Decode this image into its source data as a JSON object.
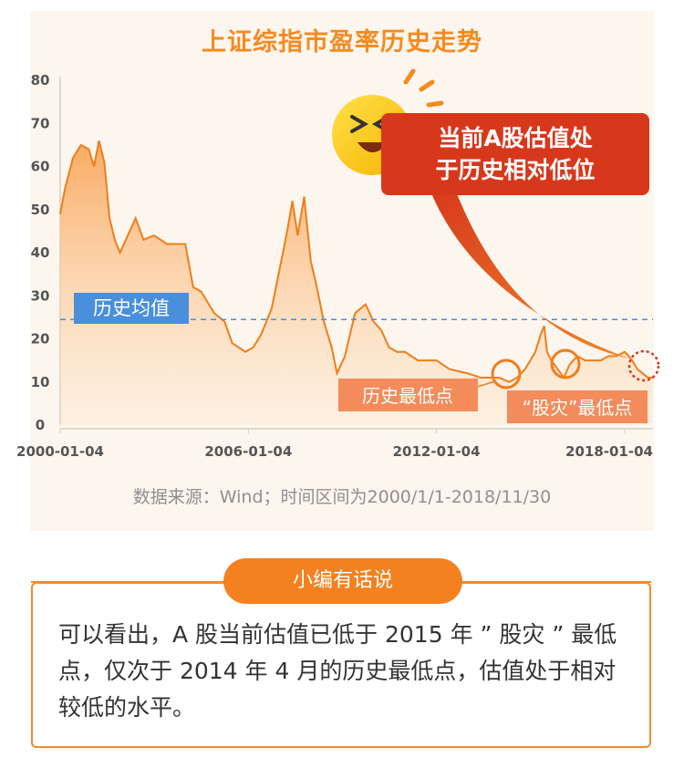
{
  "chart_data": {
    "type": "area",
    "title": "上证综指市盈率历史走势",
    "source": "数据来源：Wind；时间区间为2000/1/1-2018/11/30",
    "x_ticks": [
      "2000-01-04",
      "2006-01-04",
      "2012-01-04",
      "2018-01-04"
    ],
    "y_ticks": [
      "0",
      "10",
      "20",
      "30",
      "40",
      "50",
      "60",
      "70",
      "80"
    ],
    "ylim": [
      0,
      80
    ],
    "xlim": [
      "2000-01-04",
      "2018-11-30"
    ],
    "historical_mean": 24.5,
    "mean_label": "历史均值",
    "series": [
      {
        "x": [
          "2000-01-04",
          "2000-03-01",
          "2000-06-01",
          "2000-09-01",
          "2000-12-01",
          "2001-02-01",
          "2001-04-01",
          "2001-06-01",
          "2001-08-01",
          "2001-10-01",
          "2001-12-01",
          "2002-03-01",
          "2002-06-01",
          "2002-09-01",
          "2003-01-01",
          "2003-06-01",
          "2004-01-01",
          "2004-04-01",
          "2004-07-01",
          "2004-12-01",
          "2005-04-01",
          "2005-07-01",
          "2005-12-01",
          "2006-03-01",
          "2006-06-01",
          "2006-10-01",
          "2007-01-01",
          "2007-04-01",
          "2007-06-01",
          "2007-08-01",
          "2007-10-16",
          "2008-01-01",
          "2008-03-01",
          "2008-06-01",
          "2008-09-01",
          "2008-11-01",
          "2009-02-01",
          "2009-04-01",
          "2009-06-01",
          "2009-08-01",
          "2009-10-01",
          "2010-01-01",
          "2010-04-01",
          "2010-07-01",
          "2010-10-01",
          "2011-01-01",
          "2011-06-01",
          "2012-01-04",
          "2012-06-01",
          "2013-01-01",
          "2013-06-01",
          "2014-01-01",
          "2014-04-30",
          "2014-08-01",
          "2014-11-01",
          "2015-01-01",
          "2015-03-01",
          "2015-05-01",
          "2015-06-12",
          "2015-07-15",
          "2015-09-01",
          "2016-01-28",
          "2016-04-01",
          "2016-07-01",
          "2016-10-01",
          "2017-01-01",
          "2017-04-01",
          "2017-07-01",
          "2017-10-01",
          "2018-01-04",
          "2018-02-20",
          "2018-04-01",
          "2018-06-01",
          "2018-08-01",
          "2018-10-01",
          "2018-11-30"
        ],
        "values": [
          49,
          55,
          62,
          65,
          64,
          60,
          66,
          61,
          48,
          43,
          40,
          44,
          48,
          43,
          44,
          42,
          42,
          32,
          31,
          26,
          24,
          19,
          17,
          18,
          21,
          27,
          36,
          45,
          52,
          44,
          53,
          38,
          33,
          24,
          18,
          12,
          16,
          21,
          26,
          27,
          28,
          24,
          22,
          18,
          17,
          17,
          15,
          15,
          13,
          12,
          11,
          11,
          10,
          11,
          13,
          15,
          17,
          21,
          23,
          17,
          15,
          11,
          14,
          16,
          15,
          15,
          15,
          16,
          16,
          17,
          16,
          15,
          13,
          12,
          11,
          11
        ]
      }
    ],
    "annotations": {
      "callout": "当前A股估值处于历史相对低位",
      "low_2014": "历史最低点",
      "low_2016": "“股灾”最低点"
    },
    "colors": {
      "line": "#f07d1a",
      "fill_top": "#f9a65a",
      "mean": "#4a8fdb",
      "title": "#f58a1f",
      "callout": "#d7381c"
    }
  },
  "summary": {
    "tab": "小编有话说",
    "text": "可以看出，A 股当前估值已低于 2015 年 ” 股灾 ” 最低点，仅次于 2014 年 4 月的历史最低点，估值处于相对较低的水平。"
  }
}
